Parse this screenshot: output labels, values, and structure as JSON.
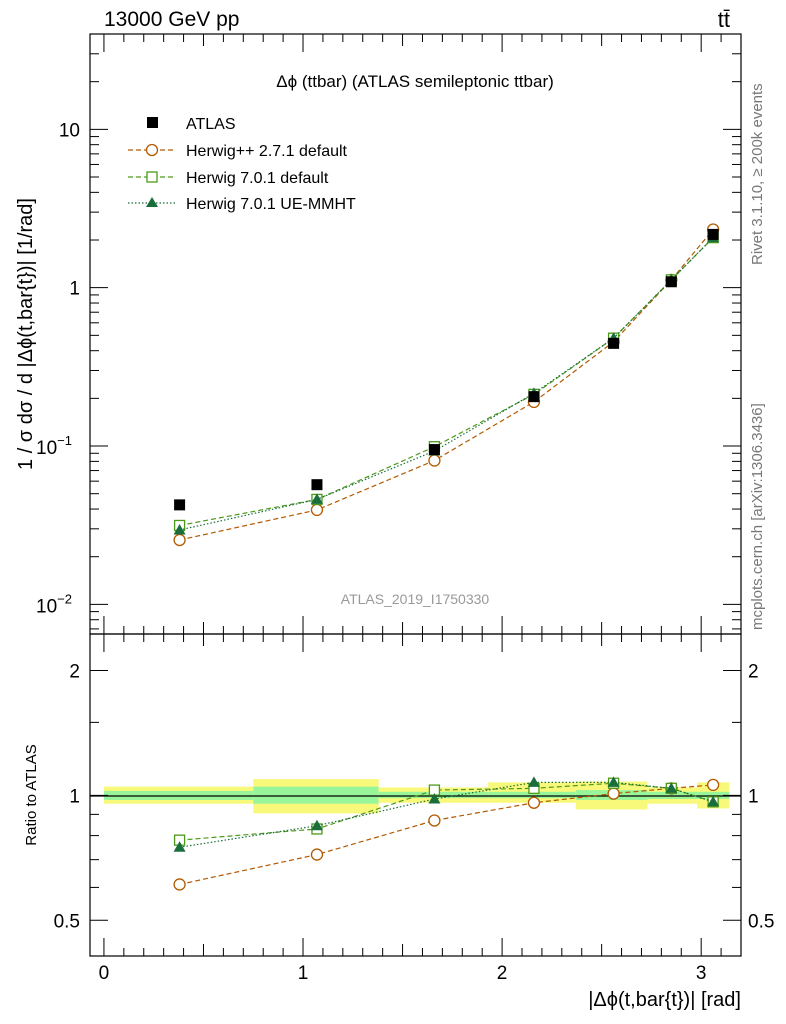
{
  "header": {
    "energy": "13000 GeV pp",
    "process": "tt̄"
  },
  "side": {
    "rivet": "Rivet 3.1.10, ≥ 200k events",
    "mcplots": "mcplots.cern.ch [arXiv:1306.3436]"
  },
  "colors": {
    "atlas": "#000000",
    "herwigpp": "#b35900",
    "herwig7_default": "#4d9a1a",
    "herwig7_uemmht": "#1a6e3c",
    "band_inner": "#99f599",
    "band_outer": "#f8f87a"
  },
  "chart_data": [
    {
      "type": "line",
      "title": "Δϕ (ttbar) (ATLAS semileptonic ttbar)",
      "ylabel": "1 / σ dσ / d |Δϕ(t,bar{t})| [1/rad]",
      "yscale": "log",
      "ylim": [
        0.0065,
        40
      ],
      "xlim": [
        -0.07,
        3.2
      ],
      "yticks": [
        {
          "value": 0.01,
          "base": "10",
          "exp": "−2"
        },
        {
          "value": 0.1,
          "base": "10",
          "exp": "−1"
        },
        {
          "value": 1,
          "label": "1"
        },
        {
          "value": 10,
          "label": "10"
        }
      ],
      "watermark": "ATLAS_2019_I1750330",
      "x": [
        0.38,
        1.07,
        1.66,
        2.16,
        2.56,
        2.85,
        3.06
      ],
      "series": [
        {
          "name": "ATLAS",
          "marker": "square-filled",
          "line": "none",
          "values": [
            0.0425,
            0.057,
            0.095,
            0.205,
            0.445,
            1.09,
            2.17
          ]
        },
        {
          "name": "Herwig++ 2.7.1 default",
          "marker": "circle-open",
          "line": "dashed",
          "values": [
            0.0255,
            0.0395,
            0.081,
            0.19,
            0.455,
            1.12,
            2.33
          ]
        },
        {
          "name": "Herwig 7.0.1 default",
          "marker": "square-open",
          "line": "dashed",
          "values": [
            0.0315,
            0.046,
            0.099,
            0.212,
            0.48,
            1.12,
            2.07
          ]
        },
        {
          "name": "Herwig 7.0.1 UE-MMHT",
          "marker": "triangle-filled",
          "line": "dotted",
          "values": [
            0.0295,
            0.046,
            0.093,
            0.215,
            0.48,
            1.12,
            2.07
          ]
        }
      ]
    },
    {
      "type": "line",
      "ylabel": "Ratio to ATLAS",
      "xlabel": "|Δϕ(t,bar{t})| [rad]",
      "yscale": "log",
      "ylim": [
        0.41,
        2.45
      ],
      "xlim": [
        -0.07,
        3.2
      ],
      "yticks": [
        {
          "value": 0.5,
          "label": "0.5"
        },
        {
          "value": 1,
          "label": "1"
        },
        {
          "value": 2,
          "label": "2"
        }
      ],
      "xticks": [
        {
          "value": 0,
          "label": "0"
        },
        {
          "value": 1,
          "label": "1"
        },
        {
          "value": 2,
          "label": "2"
        },
        {
          "value": 3,
          "label": "3"
        }
      ],
      "bins": [
        0,
        0.75,
        1.38,
        1.93,
        2.37,
        2.73,
        2.98,
        3.1416
      ],
      "band_inner": [
        [
          0.975,
          1.025
        ],
        [
          0.955,
          1.05
        ],
        [
          0.985,
          1.02
        ],
        [
          0.985,
          1.02
        ],
        [
          0.975,
          1.03
        ],
        [
          0.98,
          1.02
        ],
        [
          0.98,
          1.02
        ]
      ],
      "band_outer": [
        [
          0.955,
          1.05
        ],
        [
          0.905,
          1.095
        ],
        [
          0.96,
          1.045
        ],
        [
          0.96,
          1.075
        ],
        [
          0.925,
          1.08
        ],
        [
          0.955,
          1.045
        ],
        [
          0.93,
          1.075
        ]
      ],
      "x": [
        0.38,
        1.07,
        1.66,
        2.16,
        2.56,
        2.85,
        3.06
      ],
      "series": [
        {
          "name": "Herwig++ 2.7.1 default",
          "marker": "circle-open",
          "line": "dashed",
          "values": [
            0.61,
            0.72,
            0.87,
            0.96,
            1.01,
            1.04,
            1.06
          ]
        },
        {
          "name": "Herwig 7.0.1 default",
          "marker": "square-open",
          "line": "dashed",
          "values": [
            0.78,
            0.83,
            1.03,
            1.04,
            1.07,
            1.04,
            0.965
          ]
        },
        {
          "name": "Herwig 7.0.1 UE-MMHT",
          "marker": "triangle-filled",
          "line": "dotted",
          "values": [
            0.75,
            0.845,
            0.98,
            1.075,
            1.075,
            1.04,
            0.965
          ]
        }
      ]
    }
  ]
}
